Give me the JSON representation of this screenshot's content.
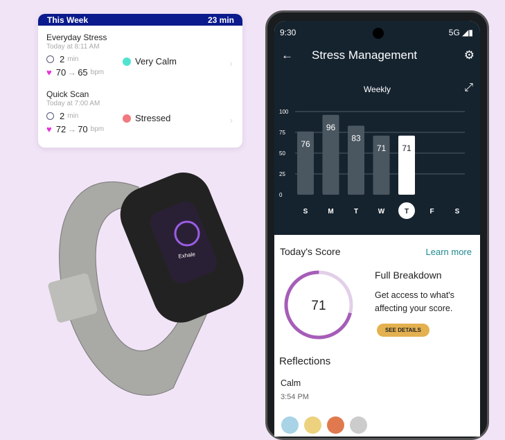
{
  "summary_card": {
    "title": "This Week",
    "total": "23 min",
    "entries": [
      {
        "name": "Everyday Stress",
        "time": "Today at 8:11 AM",
        "duration": "2",
        "duration_unit": "min",
        "hr_start": "70",
        "hr_end": "65",
        "hr_unit": "bpm",
        "mood": "Very Calm",
        "mood_color": "#4fe3d0"
      },
      {
        "name": "Quick Scan",
        "time": "Today at 7:00 AM",
        "duration": "2",
        "duration_unit": "min",
        "hr_start": "72",
        "hr_end": "70",
        "hr_unit": "bpm",
        "mood": "Stressed",
        "mood_color": "#f07a80"
      }
    ]
  },
  "tracker": {
    "screen_text": "Exhale"
  },
  "phone": {
    "status": {
      "time": "9:30",
      "network": "5G"
    },
    "title": "Stress Management",
    "chart_title": "Weekly",
    "todays_score": {
      "heading": "Today's Score",
      "learn_more": "Learn more",
      "score": "71",
      "score_value": 71,
      "breakdown_title": "Full Breakdown",
      "breakdown_desc": "Get access to what's affecting your score.",
      "button": "SEE DETAILS"
    },
    "reflections": {
      "heading": "Reflections",
      "mood": "Calm",
      "time": "3:54 PM"
    }
  },
  "chart_data": {
    "type": "bar",
    "title": "Weekly",
    "categories": [
      "S",
      "M",
      "T",
      "W",
      "T",
      "F",
      "S"
    ],
    "values": [
      76,
      96,
      83,
      71,
      71,
      null,
      null
    ],
    "selected_index": 4,
    "ylim": [
      0,
      100
    ],
    "yticks": [
      0,
      25,
      50,
      75,
      100
    ],
    "grid": true,
    "colors": {
      "bar": "#4a5761",
      "selected": "#ffffff"
    }
  }
}
